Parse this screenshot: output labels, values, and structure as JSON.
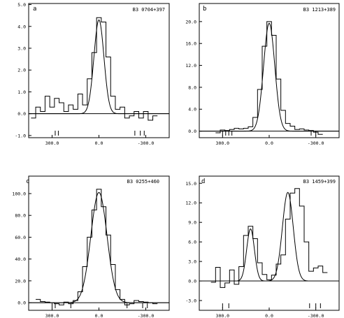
{
  "chart_data": [
    {
      "type": "line",
      "panel_label": "a",
      "source_name": "B3 0704+397",
      "x_ticks": [
        "300.0",
        "0.0",
        "-300.0"
      ],
      "y_ticks": [
        "-1.0",
        "0.0",
        "1.0",
        "2.0",
        "3.0",
        "4.0",
        "5.0"
      ],
      "xlim": [
        450,
        -450
      ],
      "ylim": [
        -1.1,
        5.05
      ],
      "grid": false,
      "fit_gaussians": [
        {
          "amp": 4.3,
          "center": 0,
          "sigma": 32
        }
      ],
      "histogram": {
        "x": [
          -360,
          -330,
          -300,
          -270,
          -240,
          -210,
          -180,
          -150,
          -120,
          -90,
          -60,
          -30,
          0,
          30,
          60,
          90,
          120,
          150,
          180,
          210,
          240,
          270,
          300,
          330,
          360,
          390,
          420
        ],
        "y": [
          -0.1,
          -0.3,
          0.1,
          -0.2,
          0.1,
          -0.1,
          -0.2,
          0.3,
          0.2,
          0.8,
          2.6,
          4.2,
          4.4,
          2.8,
          1.6,
          0.4,
          0.9,
          0.2,
          0.4,
          0.1,
          0.5,
          0.7,
          0.3,
          0.8,
          0.1,
          0.3,
          -0.2
        ]
      },
      "reference_markers": [
        -290,
        -265,
        -230,
        260,
        280
      ]
    },
    {
      "type": "line",
      "panel_label": "b",
      "source_name": "B3 1213+389",
      "x_ticks": [
        "300.0",
        "0.0",
        "-300.0"
      ],
      "y_ticks": [
        "0.0",
        "4.0",
        "8.0",
        "12.0",
        "16.0",
        "20.0"
      ],
      "xlim": [
        450,
        -450
      ],
      "ylim": [
        -1.2,
        23.3
      ],
      "grid": false,
      "fit_gaussians": [
        {
          "amp": 19.7,
          "center": 0,
          "sigma": 36
        }
      ],
      "histogram": {
        "x": [
          -330,
          -300,
          -270,
          -240,
          -210,
          -180,
          -150,
          -120,
          -90,
          -60,
          -30,
          0,
          30,
          60,
          90,
          120,
          150,
          180,
          210,
          240,
          270,
          300,
          330
        ],
        "y": [
          -0.6,
          -0.2,
          0.1,
          0.2,
          0.4,
          0.3,
          0.9,
          1.4,
          3.8,
          9.5,
          17.5,
          20.0,
          15.5,
          7.6,
          2.5,
          0.8,
          0.5,
          0.4,
          0.5,
          0.3,
          0.1,
          0.2,
          -0.3
        ]
      },
      "reference_markers": [
        -300,
        -270,
        240,
        260,
        280,
        300
      ]
    },
    {
      "type": "line",
      "panel_label": "c",
      "source_name": "B3 0255+460",
      "x_ticks": [
        "300.0",
        "0.0",
        "-300.0"
      ],
      "y_ticks": [
        "0.0",
        "20.0",
        "40.0",
        "60.0",
        "80.0",
        "100.0"
      ],
      "xlim": [
        450,
        -450
      ],
      "ylim": [
        -7,
        116
      ],
      "grid": false,
      "fit_gaussians": [
        {
          "amp": 101,
          "center": 0,
          "sigma": 52
        }
      ],
      "histogram": {
        "x": [
          -360,
          -330,
          -300,
          -270,
          -240,
          -210,
          -180,
          -150,
          -120,
          -90,
          -60,
          -30,
          0,
          30,
          60,
          90,
          120,
          150,
          180,
          210,
          240,
          270,
          300,
          330,
          360,
          390
        ],
        "y": [
          -1,
          0,
          0.5,
          1,
          2,
          -1,
          -2,
          3,
          12,
          35,
          62,
          88,
          104,
          85,
          60,
          33,
          10,
          2,
          -1,
          0.5,
          -2,
          -1,
          0,
          0.5,
          1,
          3
        ]
      },
      "reference_markers": [
        -310,
        -280,
        -180,
        180,
        280,
        300
      ]
    },
    {
      "type": "line",
      "panel_label": "d",
      "source_name": "B3 1459+399",
      "x_ticks": [
        "300.0",
        "0.0",
        "-300.0"
      ],
      "y_ticks": [
        "-3.0",
        "0.0",
        "3.0",
        "6.0",
        "9.0",
        "12.0",
        "15.0"
      ],
      "xlim": [
        450,
        -450
      ],
      "ylim": [
        -4.5,
        16.1
      ],
      "grid": false,
      "fit_gaussians": [
        {
          "amp": 8.0,
          "center": 120,
          "sigma": 25
        },
        {
          "amp": 13.6,
          "center": -120,
          "sigma": 35
        }
      ],
      "histogram": {
        "x": [
          -360,
          -330,
          -300,
          -270,
          -240,
          -210,
          -180,
          -150,
          -120,
          -90,
          -60,
          -30,
          0,
          30,
          60,
          90,
          120,
          150,
          180,
          210,
          240,
          270,
          300,
          330,
          360
        ],
        "y": [
          1.3,
          2.3,
          2.0,
          1.5,
          6.0,
          11.5,
          14.2,
          13.5,
          9.5,
          4.0,
          2.6,
          0.9,
          0.2,
          1.0,
          2.8,
          6.5,
          8.4,
          7.0,
          2.2,
          -0.5,
          1.7,
          -0.3,
          -1.0,
          2.1,
          -0.2
        ]
      },
      "reference_markers": [
        -330,
        -300,
        -260,
        260,
        300
      ]
    }
  ]
}
